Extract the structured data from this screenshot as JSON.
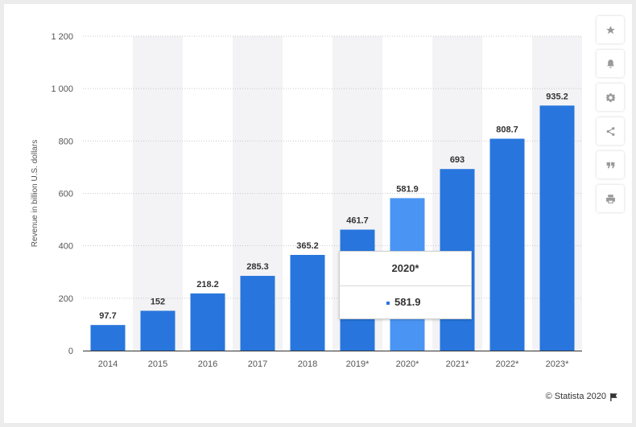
{
  "chart_data": {
    "type": "bar",
    "categories": [
      "2014",
      "2015",
      "2016",
      "2017",
      "2018",
      "2019*",
      "2020*",
      "2021*",
      "2022*",
      "2023*"
    ],
    "values": [
      97.7,
      152,
      218.2,
      285.3,
      365.2,
      461.7,
      581.9,
      693,
      808.7,
      935.2
    ],
    "value_labels": [
      "97.7",
      "152",
      "218.2",
      "285.3",
      "365.2",
      "461.7",
      "581.9",
      "693",
      "808.7",
      "935.2"
    ],
    "ylabel": "Revenue in billion U.S. dollars",
    "xlabel": "",
    "ylim": [
      0,
      1200
    ],
    "yticks": [
      0,
      200,
      400,
      600,
      800,
      1000,
      1200
    ],
    "ytick_labels": [
      "0",
      "200",
      "400",
      "600",
      "800",
      "1 000",
      "1 200"
    ],
    "grid": true,
    "highlighted_category": "2020*",
    "colors": {
      "bar": "#2876dd",
      "highlight": "#4a95f3",
      "band": "#f3f3f5",
      "grid": "#c8c8c8"
    }
  },
  "tooltip": {
    "title": "2020*",
    "value": "581.9"
  },
  "credits": {
    "text": "© Statista 2020"
  },
  "toolbar": {
    "buttons": [
      {
        "icon": "star-icon"
      },
      {
        "icon": "bell-icon"
      },
      {
        "icon": "gear-icon"
      },
      {
        "icon": "share-icon"
      },
      {
        "icon": "quote-icon"
      },
      {
        "icon": "print-icon"
      }
    ]
  }
}
